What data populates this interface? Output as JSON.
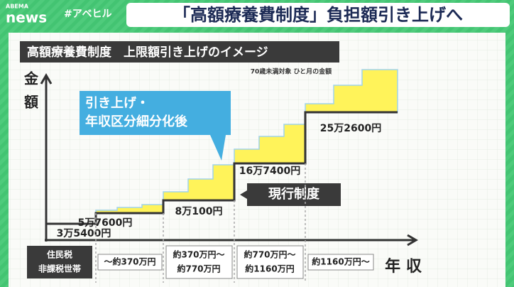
{
  "header": {
    "logo_small": "ABEMA",
    "logo": "news",
    "hashtag": "#アベヒル",
    "headline": "「高額療養費制度」負担額引き上げへ"
  },
  "panel": {
    "title": "高額療養費制度　上限額引き上げのイメージ",
    "note": "70歳未満対象 ひと月の金額",
    "y_axis_label": [
      "金",
      "額"
    ],
    "x_axis_label": "年 収",
    "callout": [
      "引き上げ・",
      "年収区分細分化後"
    ],
    "current_label": "現行制度",
    "steps": [
      "3万5400円",
      "5万7600円",
      "8万100円",
      "16万7400円",
      "25万2600円"
    ],
    "brackets": [
      [
        "住民税",
        "非課税世帯"
      ],
      [
        "～約370万円"
      ],
      [
        "約370万円～",
        "約770万円"
      ],
      [
        "約770万円～",
        "約1160万円"
      ],
      [
        "約1160万円～"
      ]
    ]
  }
}
